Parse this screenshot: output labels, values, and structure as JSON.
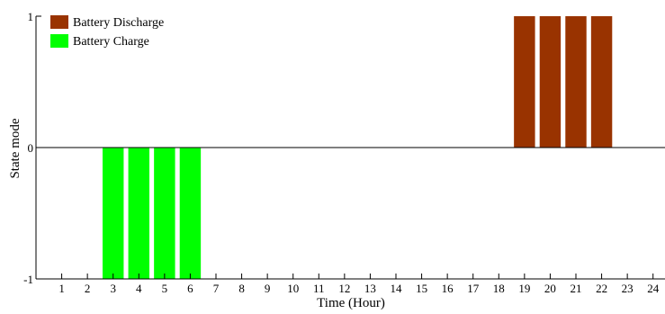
{
  "chart_data": {
    "type": "bar",
    "title": "",
    "xlabel": "Time (Hour)",
    "ylabel": "State mode",
    "ylim": [
      -1,
      1
    ],
    "yticks": [
      -1,
      0,
      1
    ],
    "categories": [
      "1",
      "2",
      "3",
      "4",
      "5",
      "6",
      "7",
      "8",
      "9",
      "10",
      "11",
      "12",
      "13",
      "14",
      "15",
      "16",
      "17",
      "18",
      "19",
      "20",
      "21",
      "22",
      "23",
      "24"
    ],
    "series": [
      {
        "name": "Battery Discharge",
        "color": "#993300",
        "values": [
          0,
          0,
          0,
          0,
          0,
          0,
          0,
          0,
          0,
          0,
          0,
          0,
          0,
          0,
          0,
          0,
          0,
          0,
          1,
          1,
          1,
          1,
          0,
          0
        ]
      },
      {
        "name": "Battery Charge",
        "color": "#00ff00",
        "values": [
          0,
          0,
          -1,
          -1,
          -1,
          -1,
          0,
          0,
          0,
          0,
          0,
          0,
          0,
          0,
          0,
          0,
          0,
          0,
          0,
          0,
          0,
          0,
          0,
          0
        ]
      }
    ],
    "grid": false,
    "legend_position": "top-left"
  }
}
